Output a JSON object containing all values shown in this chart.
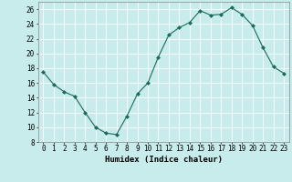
{
  "x": [
    0,
    1,
    2,
    3,
    4,
    5,
    6,
    7,
    8,
    9,
    10,
    11,
    12,
    13,
    14,
    15,
    16,
    17,
    18,
    19,
    20,
    21,
    22,
    23
  ],
  "y": [
    17.5,
    15.8,
    14.8,
    14.2,
    12.0,
    10.0,
    9.2,
    9.0,
    11.5,
    14.5,
    16.0,
    19.5,
    22.5,
    23.5,
    24.2,
    25.8,
    25.2,
    25.3,
    26.2,
    25.3,
    23.8,
    20.8,
    18.2,
    17.3
  ],
  "xlabel": "Humidex (Indice chaleur)",
  "xlim": [
    -0.5,
    23.5
  ],
  "ylim": [
    8,
    27
  ],
  "yticks": [
    8,
    10,
    12,
    14,
    16,
    18,
    20,
    22,
    24,
    26
  ],
  "xticks": [
    0,
    1,
    2,
    3,
    4,
    5,
    6,
    7,
    8,
    9,
    10,
    11,
    12,
    13,
    14,
    15,
    16,
    17,
    18,
    19,
    20,
    21,
    22,
    23
  ],
  "line_color": "#1a6b5a",
  "marker": "D",
  "marker_size": 2,
  "bg_color": "#c8ecec",
  "grid_color": "#ffffff",
  "label_fontsize": 6.5,
  "tick_fontsize": 5.5
}
